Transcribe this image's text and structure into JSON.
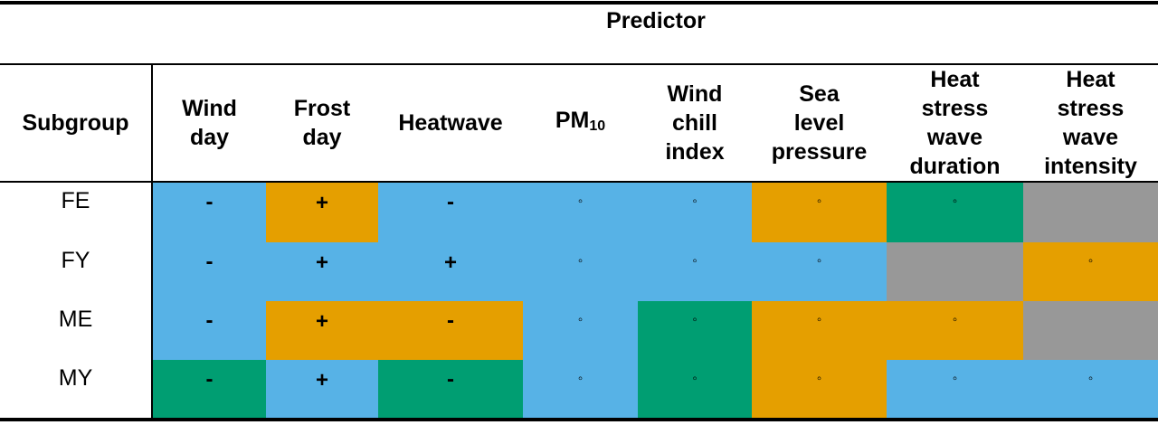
{
  "table": {
    "predictor_title": "Predictor",
    "subgroup_header": "Subgroup",
    "columns": [
      {
        "label": "Wind\nday"
      },
      {
        "label": "Frost\nday"
      },
      {
        "label": "Heatwave"
      },
      {
        "label": "PM",
        "sub": "10"
      },
      {
        "label": "Wind\nchill\nindex"
      },
      {
        "label": "Sea\nlevel\npressure"
      },
      {
        "label": "Heat\nstress\nwave\nduration"
      },
      {
        "label": "Heat\nstress\nwave\nintensity"
      }
    ],
    "colors": {
      "blue": "#57b2e6",
      "orange": "#e59f00",
      "green": "#009e72",
      "gray": "#989898"
    },
    "rows": [
      {
        "label": "FE",
        "cells": [
          {
            "symbol": "-",
            "color": "blue"
          },
          {
            "symbol": "+",
            "color": "orange"
          },
          {
            "symbol": "-",
            "color": "blue"
          },
          {
            "symbol": "◦",
            "color": "blue"
          },
          {
            "symbol": "◦",
            "color": "blue"
          },
          {
            "symbol": "◦",
            "color": "orange"
          },
          {
            "symbol": "◦",
            "color": "green"
          },
          {
            "symbol": "",
            "color": "gray"
          }
        ]
      },
      {
        "label": "FY",
        "cells": [
          {
            "symbol": "-",
            "color": "blue"
          },
          {
            "symbol": "+",
            "color": "blue"
          },
          {
            "symbol": "+",
            "color": "blue"
          },
          {
            "symbol": "◦",
            "color": "blue"
          },
          {
            "symbol": "◦",
            "color": "blue"
          },
          {
            "symbol": "◦",
            "color": "blue"
          },
          {
            "symbol": "",
            "color": "gray"
          },
          {
            "symbol": "◦",
            "color": "orange"
          }
        ]
      },
      {
        "label": "ME",
        "cells": [
          {
            "symbol": "-",
            "color": "blue"
          },
          {
            "symbol": "+",
            "color": "orange"
          },
          {
            "symbol": "-",
            "color": "orange"
          },
          {
            "symbol": "◦",
            "color": "blue"
          },
          {
            "symbol": "◦",
            "color": "green"
          },
          {
            "symbol": "◦",
            "color": "orange"
          },
          {
            "symbol": "◦",
            "color": "orange"
          },
          {
            "symbol": "",
            "color": "gray"
          }
        ]
      },
      {
        "label": "MY",
        "cells": [
          {
            "symbol": "-",
            "color": "green"
          },
          {
            "symbol": "+",
            "color": "blue"
          },
          {
            "symbol": "-",
            "color": "green"
          },
          {
            "symbol": "◦",
            "color": "blue"
          },
          {
            "symbol": "◦",
            "color": "green"
          },
          {
            "symbol": "◦",
            "color": "orange"
          },
          {
            "symbol": "◦",
            "color": "blue"
          },
          {
            "symbol": "◦",
            "color": "blue"
          }
        ]
      }
    ]
  }
}
